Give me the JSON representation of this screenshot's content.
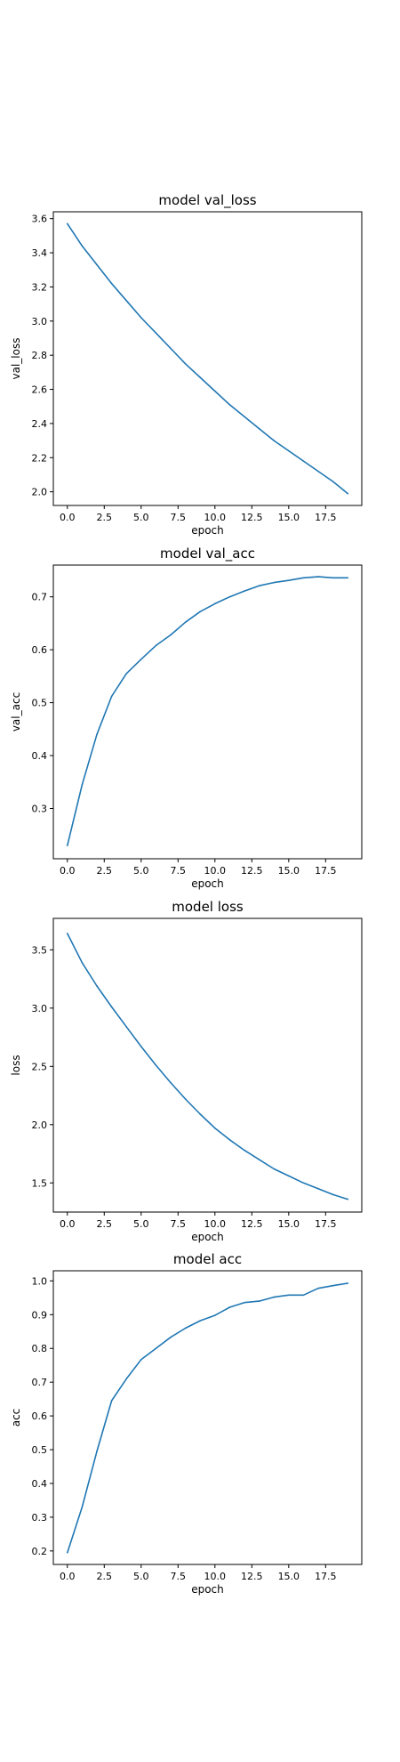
{
  "figure": {
    "line_color": "#1f77b4"
  },
  "chart_data": [
    {
      "type": "line",
      "title": "model val_loss",
      "xlabel": "epoch",
      "ylabel": "val_loss",
      "grid": false,
      "xlim": [
        -0.95,
        19.95
      ],
      "ylim": [
        1.92,
        3.64
      ],
      "xticks": [
        0,
        2.5,
        5,
        7.5,
        10,
        12.5,
        15,
        17.5
      ],
      "xtick_labels": [
        "0.0",
        "2.5",
        "5.0",
        "7.5",
        "10.0",
        "12.5",
        "15.0",
        "17.5"
      ],
      "yticks": [
        2.0,
        2.2,
        2.4,
        2.6,
        2.8,
        3.0,
        3.2,
        3.4,
        3.6
      ],
      "ytick_labels": [
        "2.0",
        "2.2",
        "2.4",
        "2.6",
        "2.8",
        "3.0",
        "3.2",
        "3.4",
        "3.6"
      ],
      "series": [
        {
          "name": "val_loss",
          "x": [
            0,
            1,
            2,
            3,
            4,
            5,
            6,
            7,
            8,
            9,
            10,
            11,
            12,
            13,
            14,
            15,
            16,
            17,
            18,
            19
          ],
          "y": [
            3.57,
            3.44,
            3.33,
            3.22,
            3.12,
            3.02,
            2.93,
            2.84,
            2.75,
            2.67,
            2.59,
            2.51,
            2.44,
            2.37,
            2.3,
            2.24,
            2.18,
            2.12,
            2.06,
            1.99
          ]
        }
      ]
    },
    {
      "type": "line",
      "title": "model val_acc",
      "xlabel": "epoch",
      "ylabel": "val_acc",
      "grid": false,
      "xlim": [
        -0.95,
        19.95
      ],
      "ylim": [
        0.205,
        0.76
      ],
      "xticks": [
        0,
        2.5,
        5,
        7.5,
        10,
        12.5,
        15,
        17.5
      ],
      "xtick_labels": [
        "0.0",
        "2.5",
        "5.0",
        "7.5",
        "10.0",
        "12.5",
        "15.0",
        "17.5"
      ],
      "yticks": [
        0.3,
        0.4,
        0.5,
        0.6,
        0.7
      ],
      "ytick_labels": [
        "0.3",
        "0.4",
        "0.5",
        "0.6",
        "0.7"
      ],
      "series": [
        {
          "name": "val_acc",
          "x": [
            0,
            1,
            2,
            3,
            4,
            5,
            6,
            7,
            8,
            9,
            10,
            11,
            12,
            13,
            14,
            15,
            16,
            17,
            18,
            19
          ],
          "y": [
            0.23,
            0.345,
            0.44,
            0.512,
            0.555,
            0.582,
            0.608,
            0.628,
            0.652,
            0.672,
            0.687,
            0.7,
            0.711,
            0.721,
            0.727,
            0.731,
            0.736,
            0.738,
            0.736,
            0.736
          ]
        }
      ]
    },
    {
      "type": "line",
      "title": "model loss",
      "xlabel": "epoch",
      "ylabel": "loss",
      "grid": false,
      "xlim": [
        -0.95,
        19.95
      ],
      "ylim": [
        1.25,
        3.77
      ],
      "xticks": [
        0,
        2.5,
        5,
        7.5,
        10,
        12.5,
        15,
        17.5
      ],
      "xtick_labels": [
        "0.0",
        "2.5",
        "5.0",
        "7.5",
        "10.0",
        "12.5",
        "15.0",
        "17.5"
      ],
      "yticks": [
        1.5,
        2.0,
        2.5,
        3.0,
        3.5
      ],
      "ytick_labels": [
        "1.5",
        "2.0",
        "2.5",
        "3.0",
        "3.5"
      ],
      "series": [
        {
          "name": "loss",
          "x": [
            0,
            1,
            2,
            3,
            4,
            5,
            6,
            7,
            8,
            9,
            10,
            11,
            12,
            13,
            14,
            15,
            16,
            17,
            18,
            19
          ],
          "y": [
            3.64,
            3.39,
            3.19,
            3.01,
            2.84,
            2.67,
            2.51,
            2.36,
            2.22,
            2.09,
            1.97,
            1.87,
            1.78,
            1.7,
            1.62,
            1.56,
            1.5,
            1.45,
            1.4,
            1.36
          ]
        }
      ]
    },
    {
      "type": "line",
      "title": "model acc",
      "xlabel": "epoch",
      "ylabel": "acc",
      "grid": false,
      "xlim": [
        -0.95,
        19.95
      ],
      "ylim": [
        0.16,
        1.03
      ],
      "xticks": [
        0,
        2.5,
        5,
        7.5,
        10,
        12.5,
        15,
        17.5
      ],
      "xtick_labels": [
        "0.0",
        "2.5",
        "5.0",
        "7.5",
        "10.0",
        "12.5",
        "15.0",
        "17.5"
      ],
      "yticks": [
        0.2,
        0.3,
        0.4,
        0.5,
        0.6,
        0.7,
        0.8,
        0.9,
        1.0
      ],
      "ytick_labels": [
        "0.2",
        "0.3",
        "0.4",
        "0.5",
        "0.6",
        "0.7",
        "0.8",
        "0.9",
        "1.0"
      ],
      "series": [
        {
          "name": "acc",
          "x": [
            0,
            1,
            2,
            3,
            4,
            5,
            6,
            7,
            8,
            9,
            10,
            11,
            12,
            13,
            14,
            15,
            16,
            17,
            18,
            19
          ],
          "y": [
            0.195,
            0.33,
            0.495,
            0.645,
            0.71,
            0.767,
            0.8,
            0.833,
            0.86,
            0.882,
            0.898,
            0.922,
            0.936,
            0.94,
            0.952,
            0.958,
            0.958,
            0.978,
            0.986,
            0.993
          ]
        }
      ]
    }
  ]
}
